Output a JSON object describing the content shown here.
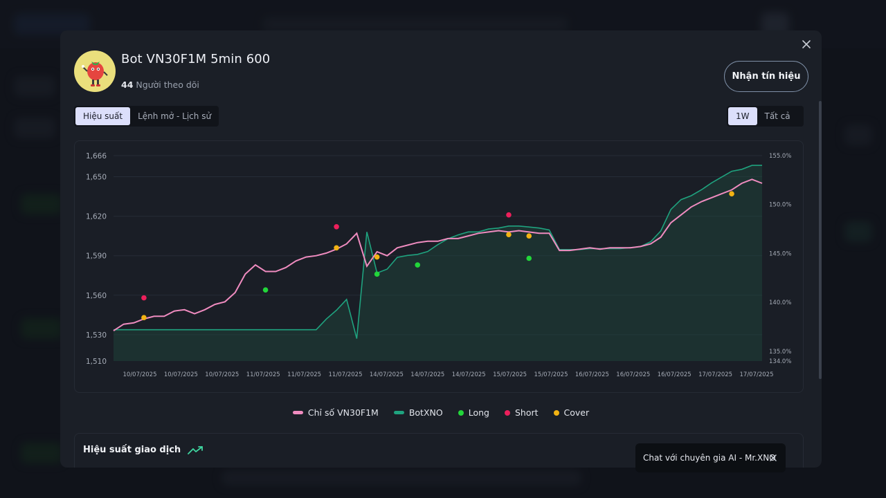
{
  "bot": {
    "name": "Bot VN30F1M 5min 600",
    "followers_count": "44",
    "followers_label": "Người theo dõi"
  },
  "actions": {
    "signal_button": "Nhận tín hiệu"
  },
  "tabs": [
    {
      "label": "Hiệu suất",
      "active": true
    },
    {
      "label": "Lệnh mở - Lịch sử",
      "active": false
    }
  ],
  "range_tabs": [
    {
      "label": "1W",
      "active": true
    },
    {
      "label": "Tất cả",
      "active": false
    }
  ],
  "legend": [
    {
      "label": "Chỉ số VN30F1M",
      "color": "#f08cc0",
      "kind": "line"
    },
    {
      "label": "BotXNO",
      "color": "#1fa37f",
      "kind": "line"
    },
    {
      "label": "Long",
      "color": "#22d63a",
      "kind": "dot"
    },
    {
      "label": "Short",
      "color": "#ec1f5b",
      "kind": "dot"
    },
    {
      "label": "Cover",
      "color": "#f2b313",
      "kind": "dot"
    }
  ],
  "performance": {
    "title": "Hiệu suất giao dịch"
  },
  "chat": {
    "label": "Chat với chuyên gia AI - Mr.XNO"
  },
  "chart_data": {
    "type": "line",
    "x_tick_labels": [
      "10/07/2025",
      "10/07/2025",
      "10/07/2025",
      "11/07/2025",
      "11/07/2025",
      "11/07/2025",
      "14/07/2025",
      "14/07/2025",
      "14/07/2025",
      "15/07/2025",
      "15/07/2025",
      "16/07/2025",
      "16/07/2025",
      "16/07/2025",
      "17/07/2025",
      "17/07/2025"
    ],
    "y_left_ticks": [
      "1,666",
      "1,650",
      "1,620",
      "1,590",
      "1,560",
      "1,530",
      "1,510"
    ],
    "y_left_values": [
      1666,
      1650,
      1620,
      1590,
      1560,
      1530,
      1510
    ],
    "y_right_ticks": [
      "155.0%",
      "150.0%",
      "145.0%",
      "140.0%",
      "135.0%",
      "134.0%"
    ],
    "y_right_values": [
      155,
      150,
      145,
      140,
      135,
      134
    ],
    "ylim_left": [
      1510,
      1666
    ],
    "ylim_right": [
      134,
      155
    ],
    "grid": true,
    "series": [
      {
        "name": "Chỉ số VN30F1M",
        "axis": "left",
        "values": [
          1533,
          1538,
          1539,
          1542,
          1544,
          1544,
          1548,
          1549,
          1546,
          1549,
          1553,
          1555,
          1562,
          1576,
          1583,
          1578,
          1578,
          1581,
          1586,
          1589,
          1590,
          1592,
          1595,
          1599,
          1607,
          1582,
          1593,
          1590,
          1596,
          1598,
          1600,
          1601,
          1601,
          1603,
          1603,
          1605,
          1607,
          1608,
          1609,
          1608,
          1609,
          1608,
          1607,
          1607,
          1594,
          1594,
          1595,
          1596,
          1595,
          1596,
          1596,
          1596,
          1597,
          1599,
          1604,
          1615,
          1621,
          1627,
          1631,
          1634,
          1637,
          1640,
          1645,
          1648,
          1645
        ]
      },
      {
        "name": "BotXNO",
        "axis": "right",
        "values": [
          137.2,
          137.2,
          137.2,
          137.2,
          137.2,
          137.2,
          137.2,
          137.2,
          137.2,
          137.2,
          137.2,
          137.2,
          137.2,
          137.2,
          137.2,
          137.2,
          137.2,
          137.2,
          137.2,
          137.2,
          137.2,
          138.3,
          139.2,
          140.3,
          136.3,
          147.2,
          143.0,
          143.4,
          144.6,
          144.8,
          144.9,
          145.2,
          145.9,
          146.5,
          146.9,
          147.2,
          147.2,
          147.5,
          147.6,
          147.8,
          147.8,
          147.7,
          147.6,
          147.4,
          145.4,
          145.4,
          145.4,
          145.5,
          145.5,
          145.5,
          145.5,
          145.6,
          145.7,
          146.2,
          147.3,
          149.5,
          150.5,
          150.9,
          151.5,
          152.2,
          152.8,
          153.4,
          153.6,
          154.0,
          154.0
        ]
      }
    ],
    "markers": [
      {
        "type": "Short",
        "x": 3,
        "y": 1558
      },
      {
        "type": "Cover",
        "x": 3,
        "y": 1543
      },
      {
        "type": "Long",
        "x": 15,
        "y": 1564
      },
      {
        "type": "Short",
        "x": 22,
        "y": 1612
      },
      {
        "type": "Cover",
        "x": 22,
        "y": 1596
      },
      {
        "type": "Cover",
        "x": 26,
        "y": 1589
      },
      {
        "type": "Long",
        "x": 26,
        "y": 1576
      },
      {
        "type": "Long",
        "x": 30,
        "y": 1583
      },
      {
        "type": "Short",
        "x": 39,
        "y": 1621
      },
      {
        "type": "Cover",
        "x": 39,
        "y": 1606
      },
      {
        "type": "Cover",
        "x": 41,
        "y": 1605
      },
      {
        "type": "Long",
        "x": 41,
        "y": 1588
      },
      {
        "type": "Cover",
        "x": 61,
        "y": 1637
      }
    ]
  }
}
